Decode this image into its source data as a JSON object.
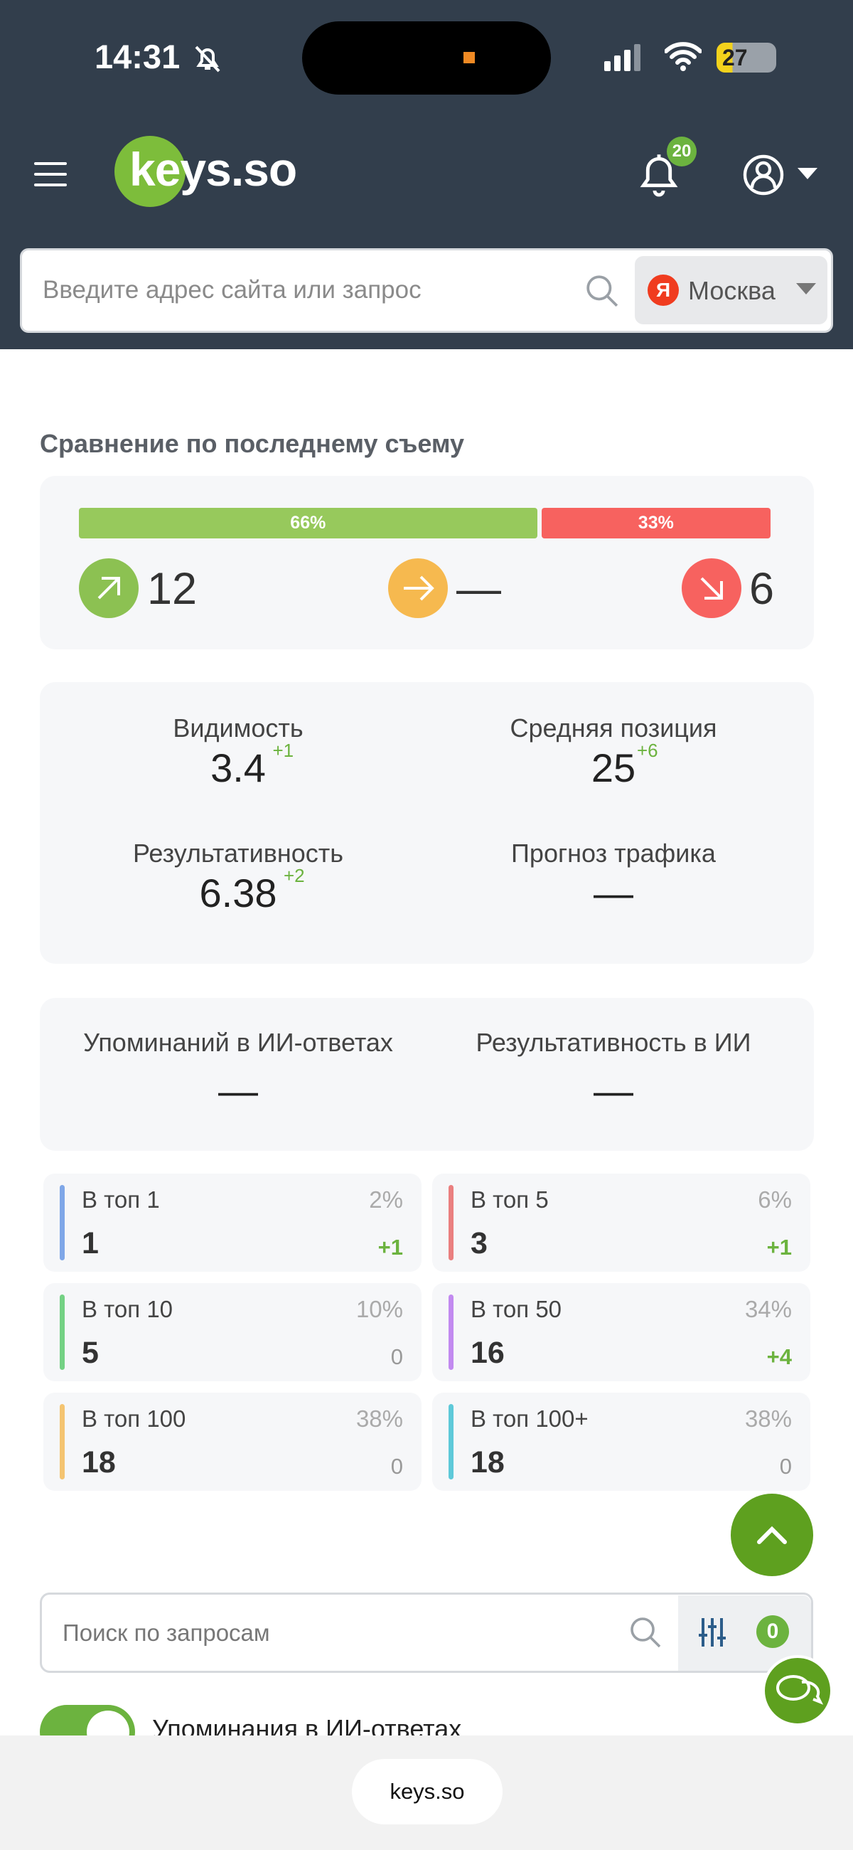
{
  "status_bar": {
    "time": "14:31",
    "battery": "27"
  },
  "header": {
    "logo": "keys.so",
    "notifications": "20"
  },
  "search": {
    "placeholder": "Введите адрес сайта или запрос",
    "region_icon": "Я",
    "region": "Москва"
  },
  "comparison": {
    "title": "Сравнение по последнему съему",
    "bars": [
      {
        "value": 66,
        "label": "66%",
        "color": "#97c95c"
      },
      {
        "value": 33,
        "label": "33%",
        "color": "#f7625f"
      }
    ],
    "up": "12",
    "same": "—",
    "down": "6"
  },
  "metrics": [
    {
      "label": "Видимость",
      "value": "3.4",
      "delta": "+1"
    },
    {
      "label": "Средняя позиция",
      "value": "25",
      "delta": "+6"
    },
    {
      "label": "Результативность",
      "value": "6.38",
      "delta": "+2"
    },
    {
      "label": "Прогноз трафика",
      "value": "—"
    }
  ],
  "ai_metrics": [
    {
      "label": "Упоминаний в ИИ-ответах",
      "value": "—"
    },
    {
      "label": "Результативность в ИИ",
      "value": "—"
    }
  ],
  "tops": [
    {
      "label": "В топ 1",
      "value": "1",
      "percent": "2%",
      "delta": "+1",
      "color": "#7fa7e8"
    },
    {
      "label": "В топ 5",
      "value": "3",
      "percent": "6%",
      "delta": "+1",
      "color": "#ea7f7f"
    },
    {
      "label": "В топ 10",
      "value": "5",
      "percent": "10%",
      "delta": "0",
      "color": "#74d184"
    },
    {
      "label": "В топ 50",
      "value": "16",
      "percent": "34%",
      "delta": "+4",
      "color": "#c28af0"
    },
    {
      "label": "В топ 100",
      "value": "18",
      "percent": "38%",
      "delta": "0",
      "color": "#f4c471"
    },
    {
      "label": "В топ 100+",
      "value": "18",
      "percent": "38%",
      "delta": "0",
      "color": "#5ec9d9"
    }
  ],
  "query_search": {
    "placeholder": "Поиск по запросам",
    "filter_count": "0"
  },
  "toggle_label": "Упоминания в ИИ-ответах",
  "browser": {
    "url": "keys.so"
  }
}
